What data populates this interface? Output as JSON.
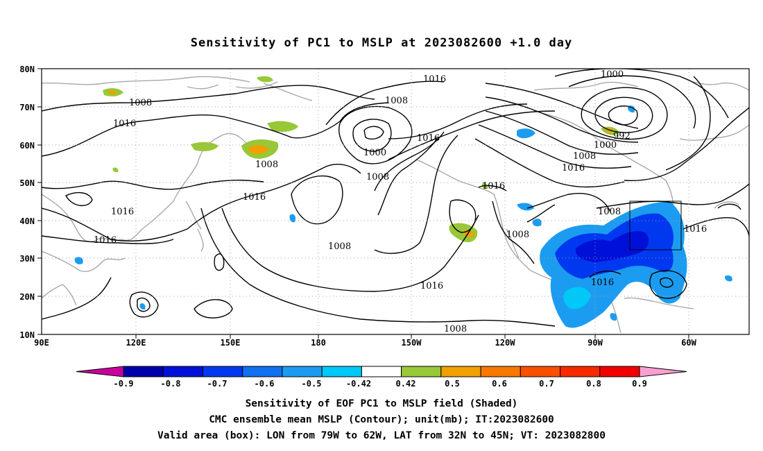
{
  "title": "Sensitivity of PC1 to MSLP at 2023082600 +1.0 day",
  "map": {
    "lat_labels": [
      "80N",
      "70N",
      "60N",
      "50N",
      "40N",
      "30N",
      "20N",
      "10N"
    ],
    "lon_labels": [
      "90E",
      "120E",
      "150E",
      "180",
      "150W",
      "120W",
      "90W",
      "60W"
    ],
    "contour_labels": [
      {
        "text": "1016"
      },
      {
        "text": "1008"
      },
      {
        "text": "1000"
      },
      {
        "text": "1008"
      },
      {
        "text": "1016"
      },
      {
        "text": "1008"
      },
      {
        "text": "1000"
      },
      {
        "text": "1008"
      },
      {
        "text": "1016"
      },
      {
        "text": "992"
      },
      {
        "text": "1000"
      },
      {
        "text": "1008"
      },
      {
        "text": "1016"
      },
      {
        "text": "1016"
      },
      {
        "text": "1016"
      },
      {
        "text": "1008"
      },
      {
        "text": "1016"
      },
      {
        "text": "1016"
      },
      {
        "text": "1008"
      },
      {
        "text": "1016"
      },
      {
        "text": "1008"
      },
      {
        "text": "1016"
      },
      {
        "text": "1016"
      },
      {
        "text": "1008"
      }
    ]
  },
  "colorbar": {
    "labels": [
      "-0.9",
      "-0.8",
      "-0.7",
      "-0.6",
      "-0.5",
      "-0.42",
      "0.42",
      "0.5",
      "0.6",
      "0.7",
      "0.8",
      "0.9"
    ],
    "colors": [
      "#c8009c",
      "#0000a8",
      "#0010d8",
      "#0038f0",
      "#1070f0",
      "#1c9cf0",
      "#00c8f8",
      "#ffffff",
      "#98c838",
      "#f0a000",
      "#f87800",
      "#f85000",
      "#f82800",
      "#f00000",
      "#f8a0d0"
    ]
  },
  "caption": {
    "line1": "Sensitivity of EOF PC1 to MSLP field (Shaded)",
    "line2": "CMC ensemble mean MSLP (Contour); unit(mb); IT:2023082600",
    "line3": "Valid area (box): LON from 79W to 62W, LAT from 32N to 45N; VT: 2023082800"
  }
}
